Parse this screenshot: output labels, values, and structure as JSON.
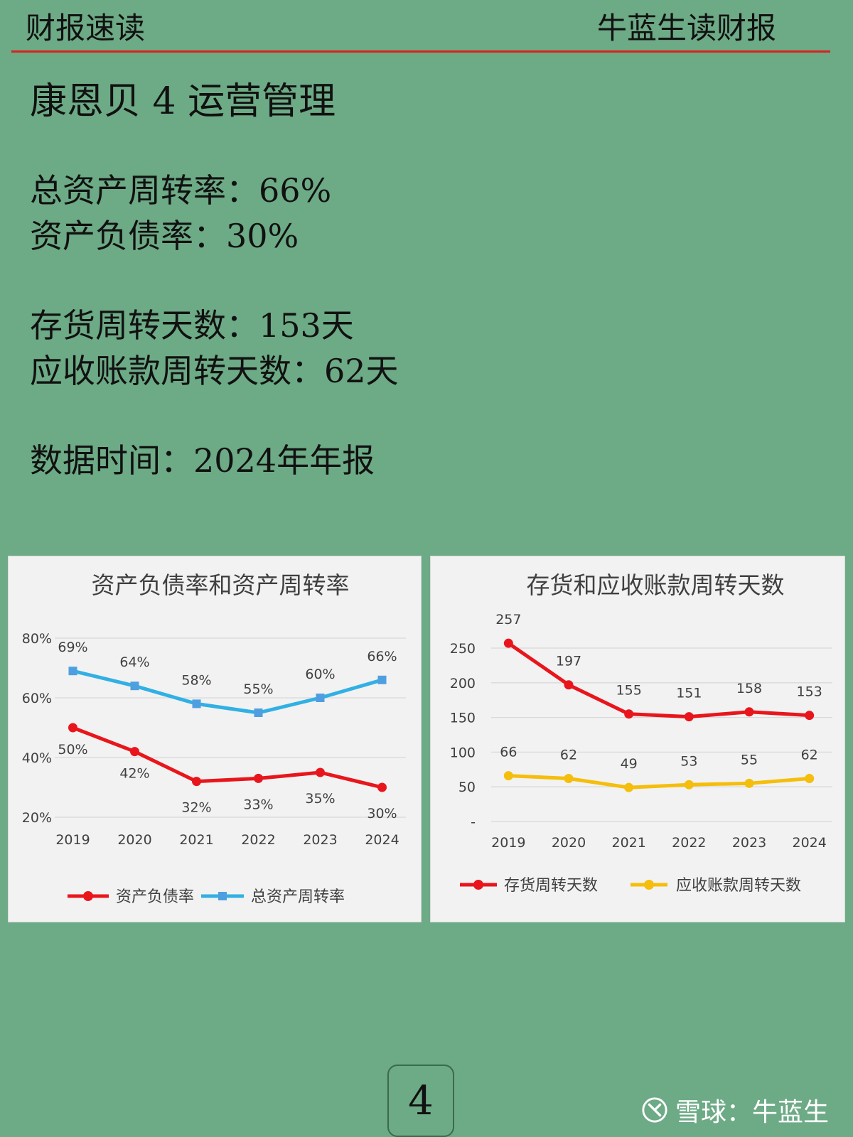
{
  "header": {
    "left_title": "财报速读",
    "right_title": "牛蓝生读财报"
  },
  "headline": "康恩贝 4 运营管理",
  "metrics": [
    "总资产周转率：66%",
    "资产负债率：30%",
    "存货周转天数：153天",
    "应收账款周转天数：62天",
    "数据时间：2024年年报"
  ],
  "page_number": "4",
  "watermark": "雪球：牛蓝生",
  "colors": {
    "background": "#6daa86",
    "header_rule": "#d8221c",
    "red_series": "#e8161c",
    "blue_series": "#31b0e4",
    "yellow_series": "#f5be0c"
  },
  "chart_data": [
    {
      "type": "line",
      "title": "资产负债率和资产周转率",
      "categories": [
        "2019",
        "2020",
        "2021",
        "2022",
        "2023",
        "2024"
      ],
      "series": [
        {
          "name": "资产负债率",
          "values": [
            50,
            42,
            32,
            33,
            35,
            30
          ],
          "labels": [
            "50%",
            "42%",
            "32%",
            "33%",
            "35%",
            "30%"
          ],
          "color": "#e8161c",
          "marker": "circle"
        },
        {
          "name": "总资产周转率",
          "values": [
            69,
            64,
            58,
            55,
            60,
            66
          ],
          "labels": [
            "69%",
            "64%",
            "58%",
            "55%",
            "60%",
            "66%"
          ],
          "color": "#31b0e4",
          "marker": "square"
        }
      ],
      "ylim": [
        20,
        80
      ],
      "yticks": [
        20,
        40,
        60,
        80
      ],
      "ytick_labels": [
        "20%",
        "40%",
        "60%",
        "80%"
      ],
      "grid": true,
      "legend": "bottom"
    },
    {
      "type": "line",
      "title": "存货和应收账款周转天数",
      "categories": [
        "2019",
        "2020",
        "2021",
        "2022",
        "2023",
        "2024"
      ],
      "series": [
        {
          "name": "存货周转天数",
          "values": [
            257,
            197,
            155,
            151,
            158,
            153
          ],
          "labels": [
            "257",
            "197",
            "155",
            "151",
            "158",
            "153"
          ],
          "color": "#e8161c",
          "marker": "circle"
        },
        {
          "name": "应收账款周转天数",
          "values": [
            66,
            62,
            49,
            53,
            55,
            62
          ],
          "labels": [
            "66",
            "62",
            "49",
            "53",
            "55",
            "62"
          ],
          "color": "#f5be0c",
          "marker": "circle"
        }
      ],
      "ylim": [
        0,
        250
      ],
      "yticks": [
        0,
        50,
        100,
        150,
        200,
        250
      ],
      "ytick_labels": [
        "-",
        "50",
        "100",
        "150",
        "200",
        "250"
      ],
      "grid": true,
      "legend": "bottom"
    }
  ]
}
